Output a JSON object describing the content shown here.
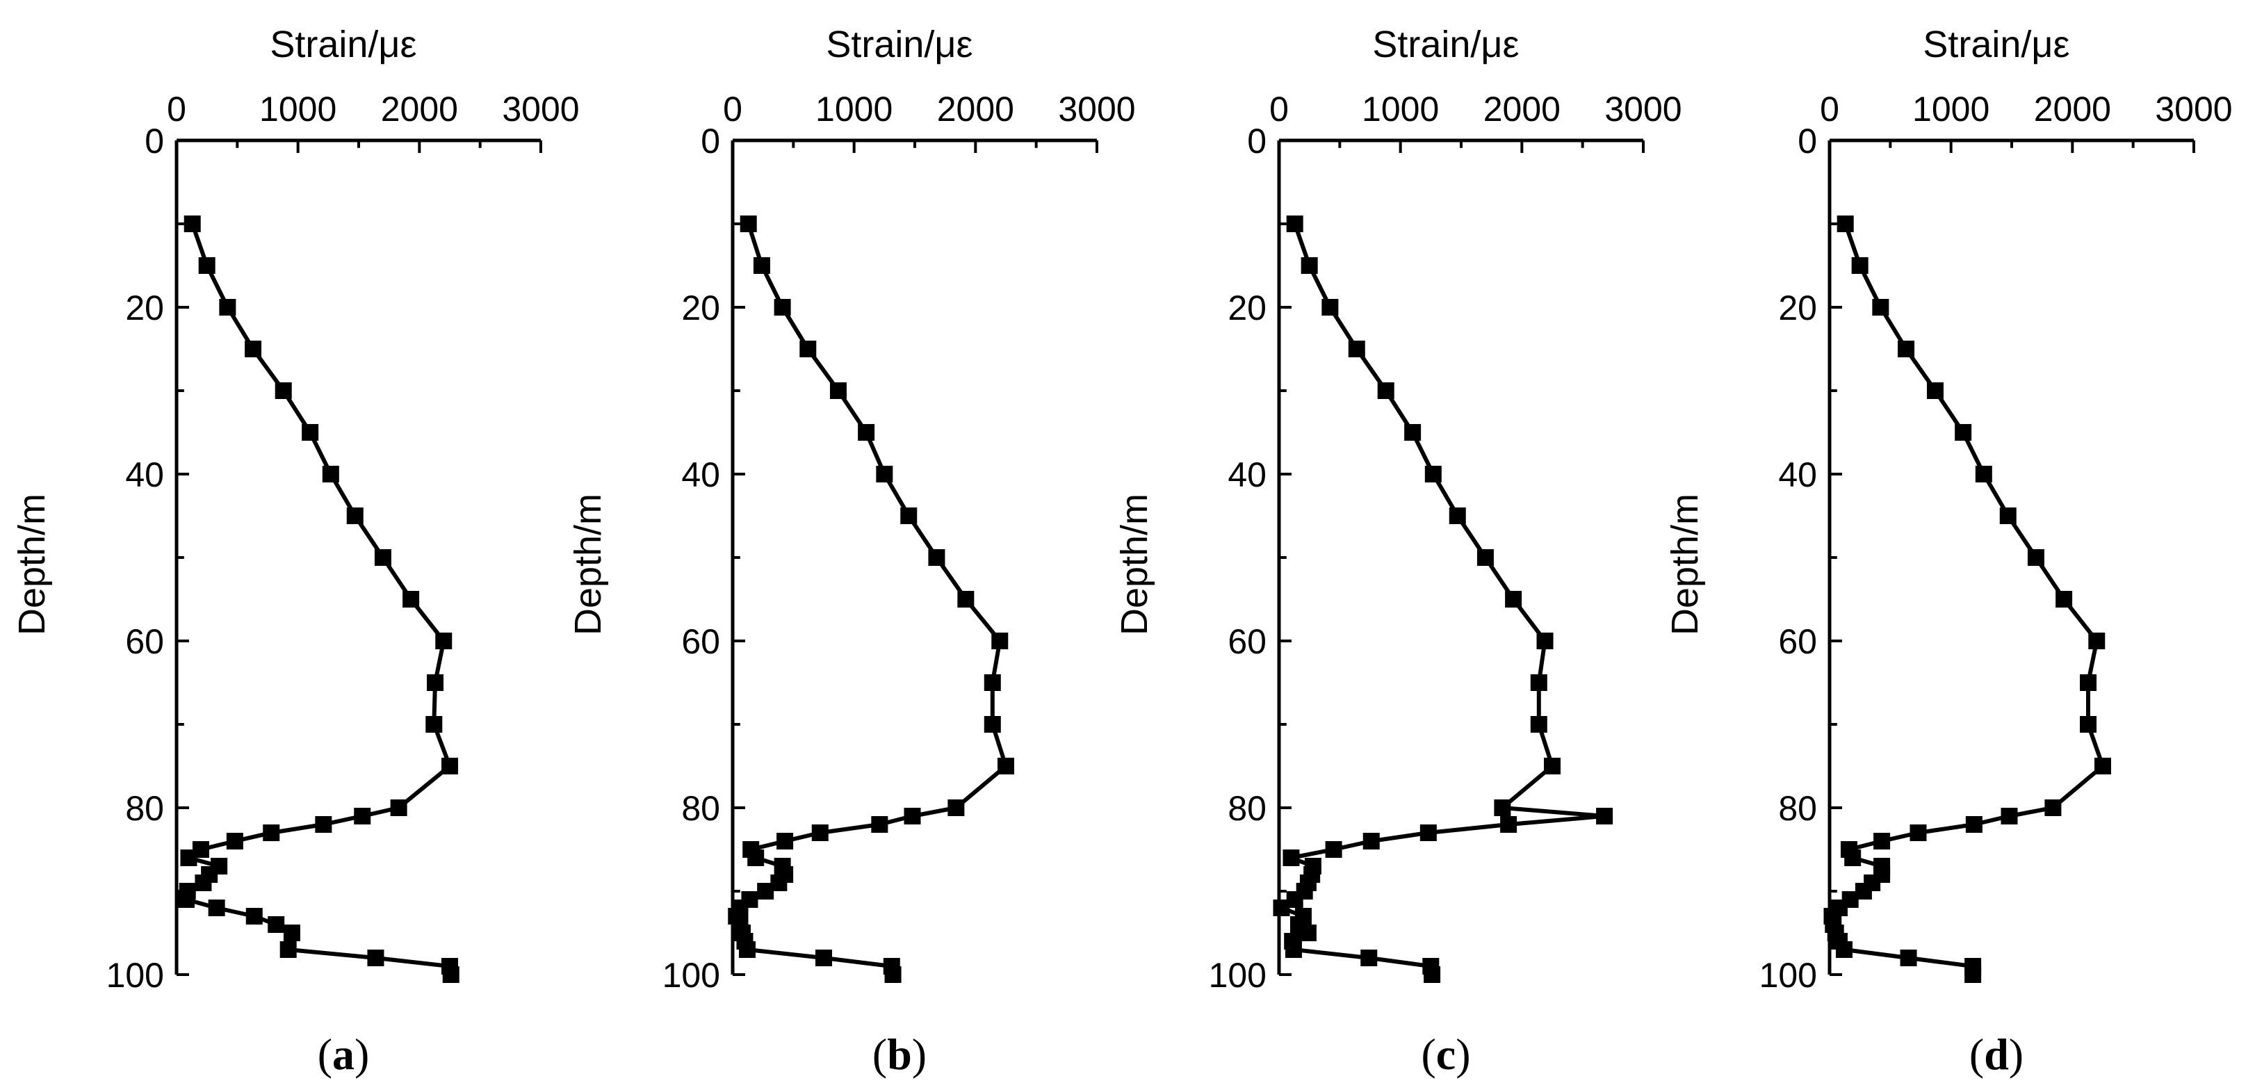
{
  "chart_data": [
    {
      "type": "line",
      "panel_label": "(a)",
      "panel_letter": "a",
      "xlabel": "Strain/με",
      "ylabel": "Depth/m",
      "xlim": [
        0,
        3000
      ],
      "ylim": [
        0,
        100
      ],
      "x_ticks": [
        "0",
        "1000",
        "2000",
        "3000"
      ],
      "y_ticks": [
        "0",
        "20",
        "40",
        "60",
        "80",
        "100"
      ],
      "series": [
        {
          "name": "strain",
          "marker": "square",
          "points": [
            [
              130,
              10
            ],
            [
              250,
              15
            ],
            [
              420,
              20
            ],
            [
              630,
              25
            ],
            [
              880,
              30
            ],
            [
              1100,
              35
            ],
            [
              1270,
              40
            ],
            [
              1470,
              45
            ],
            [
              1700,
              50
            ],
            [
              1930,
              55
            ],
            [
              2200,
              60
            ],
            [
              2130,
              65
            ],
            [
              2120,
              70
            ],
            [
              2250,
              75
            ],
            [
              1830,
              80
            ],
            [
              1530,
              81
            ],
            [
              1210,
              82
            ],
            [
              780,
              83
            ],
            [
              480,
              84
            ],
            [
              200,
              85
            ],
            [
              100,
              86
            ],
            [
              350,
              87
            ],
            [
              270,
              88
            ],
            [
              220,
              89
            ],
            [
              90,
              90
            ],
            [
              80,
              91
            ],
            [
              330,
              92
            ],
            [
              640,
              93
            ],
            [
              820,
              94
            ],
            [
              950,
              95
            ],
            [
              920,
              97
            ],
            [
              1640,
              98
            ],
            [
              2250,
              99
            ],
            [
              2260,
              100
            ]
          ]
        }
      ]
    },
    {
      "type": "line",
      "panel_label": "(b)",
      "panel_letter": "b",
      "xlabel": "Strain/με",
      "ylabel": "Depth/m",
      "xlim": [
        0,
        3000
      ],
      "ylim": [
        0,
        100
      ],
      "x_ticks": [
        "0",
        "1000",
        "2000",
        "3000"
      ],
      "y_ticks": [
        "0",
        "20",
        "40",
        "60",
        "80",
        "100"
      ],
      "series": [
        {
          "name": "strain",
          "marker": "square",
          "points": [
            [
              130,
              10
            ],
            [
              240,
              15
            ],
            [
              410,
              20
            ],
            [
              620,
              25
            ],
            [
              870,
              30
            ],
            [
              1100,
              35
            ],
            [
              1250,
              40
            ],
            [
              1450,
              45
            ],
            [
              1680,
              50
            ],
            [
              1920,
              55
            ],
            [
              2200,
              60
            ],
            [
              2140,
              65
            ],
            [
              2140,
              70
            ],
            [
              2250,
              75
            ],
            [
              1840,
              80
            ],
            [
              1480,
              81
            ],
            [
              1210,
              82
            ],
            [
              720,
              83
            ],
            [
              430,
              84
            ],
            [
              150,
              85
            ],
            [
              190,
              86
            ],
            [
              410,
              87
            ],
            [
              430,
              88
            ],
            [
              380,
              89
            ],
            [
              270,
              90
            ],
            [
              140,
              91
            ],
            [
              60,
              92
            ],
            [
              30,
              93
            ],
            [
              60,
              94
            ],
            [
              80,
              95
            ],
            [
              100,
              96
            ],
            [
              120,
              97
            ],
            [
              750,
              98
            ],
            [
              1310,
              99
            ],
            [
              1320,
              100
            ]
          ]
        }
      ]
    },
    {
      "type": "line",
      "panel_label": "(c)",
      "panel_letter": "c",
      "xlabel": "Strain/με",
      "ylabel": "Depth/m",
      "xlim": [
        0,
        3000
      ],
      "ylim": [
        0,
        100
      ],
      "x_ticks": [
        "0",
        "1000",
        "2000",
        "3000"
      ],
      "y_ticks": [
        "0",
        "20",
        "40",
        "60",
        "80",
        "100"
      ],
      "series": [
        {
          "name": "strain",
          "marker": "square",
          "points": [
            [
              130,
              10
            ],
            [
              250,
              15
            ],
            [
              420,
              20
            ],
            [
              640,
              25
            ],
            [
              880,
              30
            ],
            [
              1100,
              35
            ],
            [
              1270,
              40
            ],
            [
              1470,
              45
            ],
            [
              1700,
              50
            ],
            [
              1930,
              55
            ],
            [
              2190,
              60
            ],
            [
              2140,
              65
            ],
            [
              2140,
              70
            ],
            [
              2250,
              75
            ],
            [
              1840,
              80
            ],
            [
              2680,
              81
            ],
            [
              1890,
              82
            ],
            [
              1230,
              83
            ],
            [
              760,
              84
            ],
            [
              450,
              85
            ],
            [
              100,
              86
            ],
            [
              280,
              87
            ],
            [
              270,
              88
            ],
            [
              240,
              89
            ],
            [
              210,
              90
            ],
            [
              130,
              91
            ],
            [
              20,
              92
            ],
            [
              200,
              93
            ],
            [
              160,
              94
            ],
            [
              240,
              95
            ],
            [
              110,
              96
            ],
            [
              120,
              97
            ],
            [
              740,
              98
            ],
            [
              1250,
              99
            ],
            [
              1260,
              100
            ]
          ]
        }
      ]
    },
    {
      "type": "line",
      "panel_label": "(d)",
      "panel_letter": "d",
      "xlabel": "Strain/με",
      "ylabel": "Depth/m",
      "xlim": [
        0,
        3000
      ],
      "ylim": [
        0,
        100
      ],
      "x_ticks": [
        "0",
        "1000",
        "2000",
        "3000"
      ],
      "y_ticks": [
        "0",
        "20",
        "40",
        "60",
        "80",
        "100"
      ],
      "series": [
        {
          "name": "strain",
          "marker": "square",
          "points": [
            [
              130,
              10
            ],
            [
              250,
              15
            ],
            [
              420,
              20
            ],
            [
              630,
              25
            ],
            [
              870,
              30
            ],
            [
              1100,
              35
            ],
            [
              1270,
              40
            ],
            [
              1470,
              45
            ],
            [
              1700,
              50
            ],
            [
              1930,
              55
            ],
            [
              2200,
              60
            ],
            [
              2130,
              65
            ],
            [
              2130,
              70
            ],
            [
              2250,
              75
            ],
            [
              1840,
              80
            ],
            [
              1480,
              81
            ],
            [
              1190,
              82
            ],
            [
              730,
              83
            ],
            [
              430,
              84
            ],
            [
              160,
              85
            ],
            [
              190,
              86
            ],
            [
              430,
              87
            ],
            [
              430,
              88
            ],
            [
              350,
              89
            ],
            [
              280,
              90
            ],
            [
              170,
              91
            ],
            [
              80,
              92
            ],
            [
              20,
              93
            ],
            [
              30,
              94
            ],
            [
              50,
              95
            ],
            [
              80,
              96
            ],
            [
              120,
              97
            ],
            [
              650,
              98
            ],
            [
              1180,
              99
            ],
            [
              1180,
              100
            ]
          ]
        }
      ]
    }
  ]
}
